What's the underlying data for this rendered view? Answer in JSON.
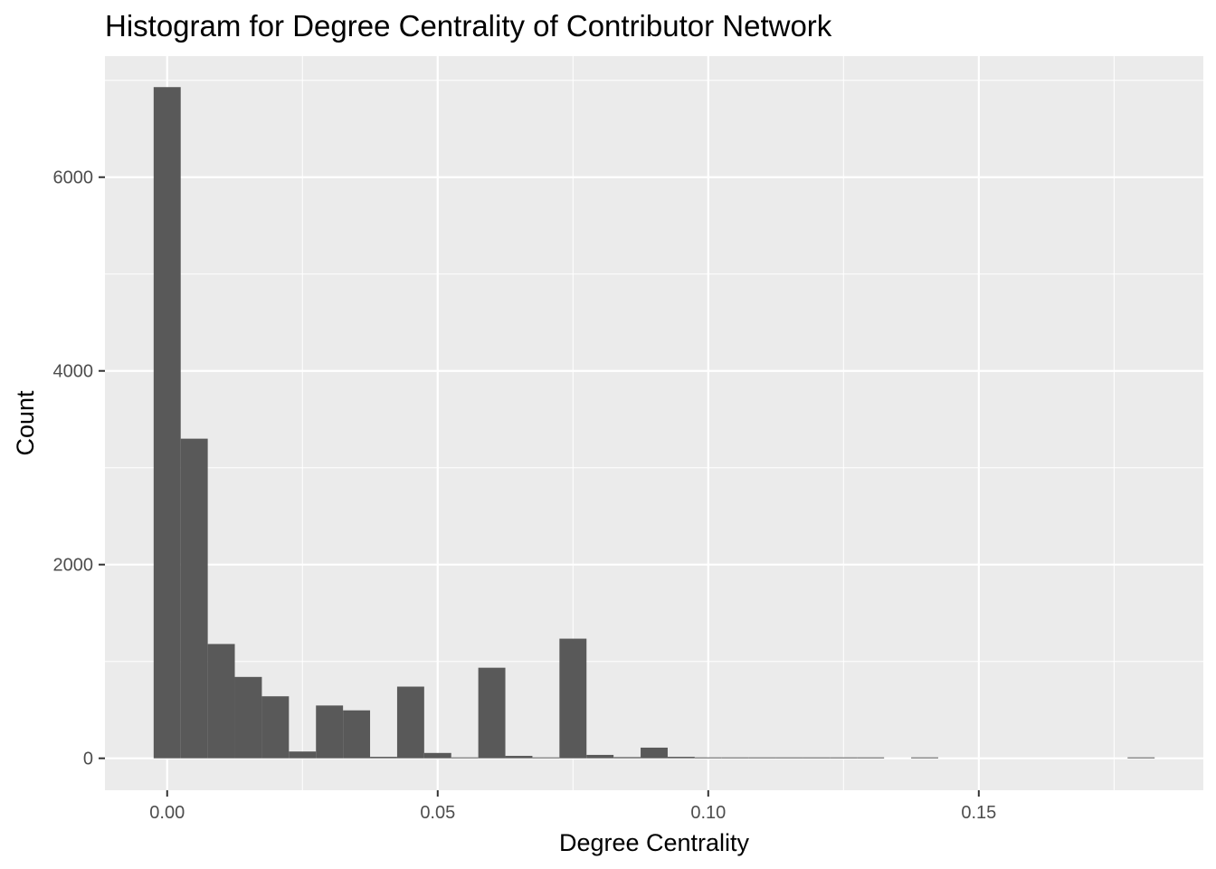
{
  "chart_data": {
    "type": "bar",
    "title": "Histogram for Degree Centrality of Contributor Network",
    "xlabel": "Degree Centrality",
    "ylabel": "Count",
    "xlim": [
      -0.0115,
      0.1915
    ],
    "ylim": [
      -330,
      7250
    ],
    "x_ticks": [
      0.0,
      0.05,
      0.1,
      0.15
    ],
    "x_tick_labels": [
      "0.00",
      "0.05",
      "0.10",
      "0.15"
    ],
    "y_ticks": [
      0,
      2000,
      4000,
      6000
    ],
    "y_tick_labels": [
      "0",
      "2000",
      "4000",
      "6000"
    ],
    "grid": true,
    "bin_width": 0.005,
    "bars": [
      {
        "x": 0.0,
        "count": 6930
      },
      {
        "x": 0.005,
        "count": 3300
      },
      {
        "x": 0.01,
        "count": 1180
      },
      {
        "x": 0.015,
        "count": 840
      },
      {
        "x": 0.02,
        "count": 640
      },
      {
        "x": 0.025,
        "count": 70
      },
      {
        "x": 0.03,
        "count": 545
      },
      {
        "x": 0.035,
        "count": 495
      },
      {
        "x": 0.04,
        "count": 15
      },
      {
        "x": 0.045,
        "count": 740
      },
      {
        "x": 0.05,
        "count": 55
      },
      {
        "x": 0.055,
        "count": 5
      },
      {
        "x": 0.06,
        "count": 935
      },
      {
        "x": 0.065,
        "count": 25
      },
      {
        "x": 0.07,
        "count": 8
      },
      {
        "x": 0.075,
        "count": 1235
      },
      {
        "x": 0.08,
        "count": 35
      },
      {
        "x": 0.085,
        "count": 12
      },
      {
        "x": 0.09,
        "count": 110
      },
      {
        "x": 0.095,
        "count": 15
      },
      {
        "x": 0.1,
        "count": 5
      },
      {
        "x": 0.105,
        "count": 5
      },
      {
        "x": 0.11,
        "count": 5
      },
      {
        "x": 0.115,
        "count": 5
      },
      {
        "x": 0.12,
        "count": 5
      },
      {
        "x": 0.125,
        "count": 5
      },
      {
        "x": 0.13,
        "count": 5
      },
      {
        "x": 0.14,
        "count": 5
      },
      {
        "x": 0.18,
        "count": 5
      }
    ],
    "colors": {
      "panel_background": "#ebebeb",
      "grid_major": "#ffffff",
      "bar_fill": "#595959",
      "tick_label": "#4d4d4d",
      "tick_mark": "#333333"
    }
  }
}
